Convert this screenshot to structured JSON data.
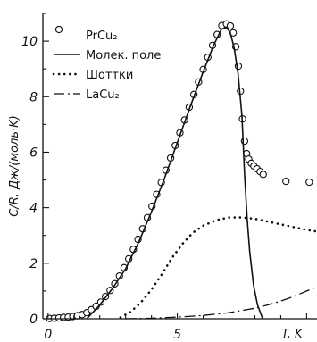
{
  "chart_data": {
    "type": "scatter",
    "xlabel": "T, K",
    "ylabel": "C/R, Дж/(моль·K)",
    "xlim": [
      -0.2,
      10.4
    ],
    "ylim": [
      0,
      11
    ],
    "xticks": [
      {
        "value": 0,
        "label": "0"
      },
      {
        "value": 5,
        "label": "5"
      }
    ],
    "yticks": [
      {
        "value": 0,
        "label": "0"
      },
      {
        "value": 2,
        "label": "2"
      },
      {
        "value": 4,
        "label": "4"
      },
      {
        "value": 6,
        "label": "6"
      },
      {
        "value": 8,
        "label": "8"
      },
      {
        "value": 10,
        "label": "10"
      }
    ],
    "legend_position": "top-left",
    "series": [
      {
        "name": "PrCu₂",
        "style": "circles",
        "points": [
          [
            0.06,
            0.01
          ],
          [
            0.24,
            0.02
          ],
          [
            0.42,
            0.03
          ],
          [
            0.6,
            0.05
          ],
          [
            0.78,
            0.06
          ],
          [
            0.96,
            0.08
          ],
          [
            1.14,
            0.11
          ],
          [
            1.32,
            0.15
          ],
          [
            1.5,
            0.22
          ],
          [
            1.68,
            0.33
          ],
          [
            1.86,
            0.45
          ],
          [
            2.04,
            0.6
          ],
          [
            2.22,
            0.8
          ],
          [
            2.4,
            1.02
          ],
          [
            2.58,
            1.26
          ],
          [
            2.76,
            1.54
          ],
          [
            2.94,
            1.84
          ],
          [
            3.12,
            2.16
          ],
          [
            3.3,
            2.5
          ],
          [
            3.48,
            2.86
          ],
          [
            3.66,
            3.24
          ],
          [
            3.84,
            3.64
          ],
          [
            4.02,
            4.05
          ],
          [
            4.2,
            4.48
          ],
          [
            4.38,
            4.91
          ],
          [
            4.56,
            5.35
          ],
          [
            4.74,
            5.79
          ],
          [
            4.92,
            6.24
          ],
          [
            5.1,
            6.7
          ],
          [
            5.28,
            7.16
          ],
          [
            5.46,
            7.62
          ],
          [
            5.64,
            8.08
          ],
          [
            5.82,
            8.53
          ],
          [
            6.0,
            8.98
          ],
          [
            6.18,
            9.42
          ],
          [
            6.36,
            9.85
          ],
          [
            6.54,
            10.24
          ],
          [
            6.72,
            10.56
          ],
          [
            6.9,
            10.62
          ],
          [
            7.05,
            10.55
          ],
          [
            7.16,
            10.3
          ],
          [
            7.26,
            9.8
          ],
          [
            7.36,
            9.1
          ],
          [
            7.44,
            8.2
          ],
          [
            7.52,
            7.2
          ],
          [
            7.6,
            6.4
          ],
          [
            7.68,
            5.95
          ],
          [
            7.76,
            5.75
          ],
          [
            7.86,
            5.6
          ],
          [
            7.96,
            5.5
          ],
          [
            8.08,
            5.4
          ],
          [
            8.2,
            5.3
          ],
          [
            8.32,
            5.2
          ],
          [
            9.2,
            4.95
          ],
          [
            10.1,
            4.92
          ]
        ]
      },
      {
        "name": "Молек. поле",
        "style": "solid",
        "points": [
          [
            1.5,
            0.0
          ],
          [
            2.0,
            0.5
          ],
          [
            2.5,
            1.1
          ],
          [
            3.0,
            1.8
          ],
          [
            3.5,
            2.75
          ],
          [
            4.0,
            3.85
          ],
          [
            4.5,
            5.05
          ],
          [
            5.0,
            6.35
          ],
          [
            5.5,
            7.65
          ],
          [
            6.0,
            8.9
          ],
          [
            6.4,
            9.85
          ],
          [
            6.7,
            10.42
          ],
          [
            6.9,
            10.5
          ],
          [
            7.05,
            10.3
          ],
          [
            7.2,
            9.75
          ],
          [
            7.35,
            8.8
          ],
          [
            7.5,
            7.3
          ],
          [
            7.6,
            5.2
          ],
          [
            7.7,
            3.6
          ],
          [
            7.8,
            2.4
          ],
          [
            7.95,
            1.2
          ],
          [
            8.1,
            0.5
          ],
          [
            8.3,
            0.0
          ]
        ]
      },
      {
        "name": "Шоттки",
        "style": "dotted",
        "points": [
          [
            2.8,
            0.05
          ],
          [
            3.2,
            0.25
          ],
          [
            3.6,
            0.6
          ],
          [
            4.0,
            1.05
          ],
          [
            4.4,
            1.6
          ],
          [
            4.8,
            2.2
          ],
          [
            5.2,
            2.7
          ],
          [
            5.6,
            3.1
          ],
          [
            6.0,
            3.35
          ],
          [
            6.5,
            3.55
          ],
          [
            7.0,
            3.65
          ],
          [
            7.5,
            3.65
          ],
          [
            8.0,
            3.6
          ],
          [
            8.5,
            3.5
          ],
          [
            9.0,
            3.4
          ],
          [
            9.5,
            3.3
          ],
          [
            10.0,
            3.2
          ],
          [
            10.35,
            3.15
          ]
        ]
      },
      {
        "name": "LaCu₂",
        "style": "dash-dot",
        "points": [
          [
            3.0,
            0.0
          ],
          [
            4.0,
            0.02
          ],
          [
            5.0,
            0.06
          ],
          [
            6.0,
            0.12
          ],
          [
            7.0,
            0.22
          ],
          [
            8.0,
            0.38
          ],
          [
            8.5,
            0.5
          ],
          [
            9.0,
            0.64
          ],
          [
            9.5,
            0.8
          ],
          [
            10.0,
            1.0
          ],
          [
            10.4,
            1.15
          ]
        ]
      }
    ]
  }
}
